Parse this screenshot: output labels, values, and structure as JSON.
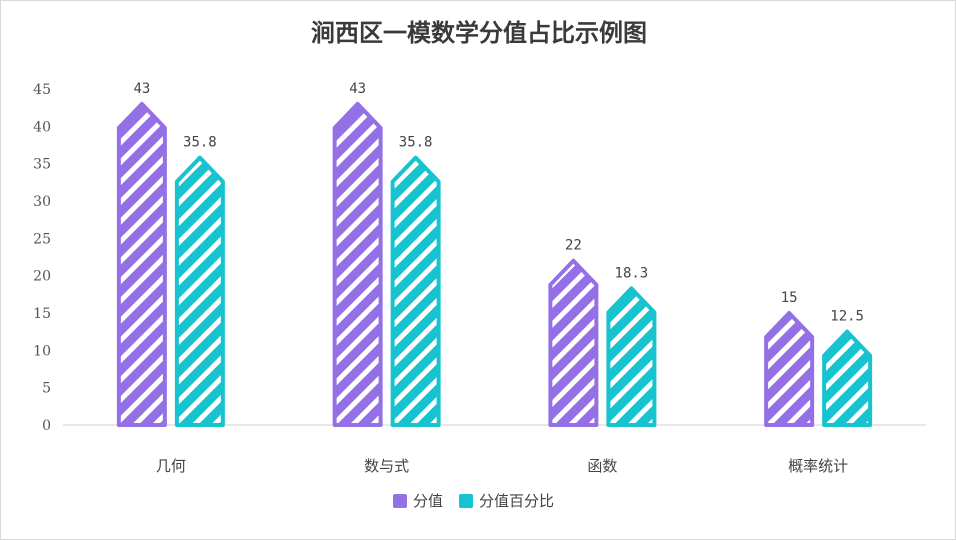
{
  "chart_data": {
    "type": "bar",
    "title": "涧西区一模数学分值占比示例图",
    "categories": [
      "几何",
      "数与式",
      "函数",
      "概率统计"
    ],
    "series": [
      {
        "name": "分值",
        "values": [
          43,
          43,
          22,
          15
        ],
        "labels": [
          "43",
          "43",
          "22",
          "15"
        ],
        "color": "#9370e6"
      },
      {
        "name": "分值百分比",
        "values": [
          35.8,
          35.8,
          18.3,
          12.5
        ],
        "labels": [
          "35.8",
          "35.8",
          "18.3",
          "12.5"
        ],
        "color": "#17c3cf"
      }
    ],
    "ylim": [
      0,
      45
    ],
    "yticks": [
      "0",
      "5",
      "10",
      "15",
      "20",
      "25",
      "30",
      "35",
      "40",
      "45"
    ],
    "grid": false,
    "legend": "bottom",
    "bar_style": "arrow-shaped with white diagonal stripes"
  }
}
